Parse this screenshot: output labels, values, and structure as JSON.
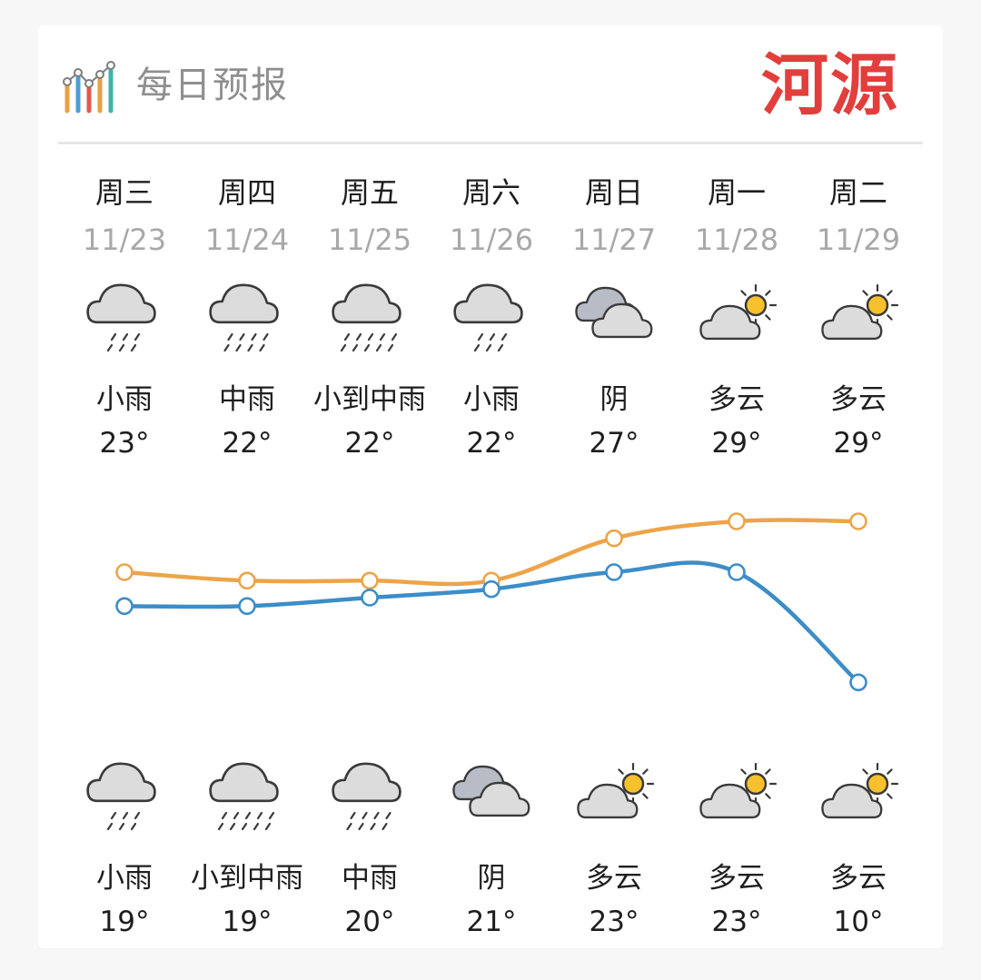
{
  "header": {
    "title": "每日预报",
    "city": "河源",
    "icon": "bar-chart-icon"
  },
  "colors": {
    "high_line": "#eda449",
    "low_line": "#3c8dc8",
    "city": "#e23e3c",
    "date": "#a8a8a8",
    "title": "#8f8f8f"
  },
  "days": [
    {
      "weekday": "周三",
      "date": "11/23",
      "day": {
        "icon": "light-rain-icon",
        "cond": "小雨",
        "temp": "23°"
      },
      "night": {
        "icon": "light-rain-icon",
        "cond": "小雨",
        "temp": "19°"
      }
    },
    {
      "weekday": "周四",
      "date": "11/24",
      "day": {
        "icon": "moderate-rain-icon",
        "cond": "中雨",
        "temp": "22°"
      },
      "night": {
        "icon": "light-to-moderate-rain-icon",
        "cond": "小到中雨",
        "temp": "19°"
      }
    },
    {
      "weekday": "周五",
      "date": "11/25",
      "day": {
        "icon": "light-to-moderate-rain-icon",
        "cond": "小到中雨",
        "temp": "22°"
      },
      "night": {
        "icon": "moderate-rain-icon",
        "cond": "中雨",
        "temp": "20°"
      }
    },
    {
      "weekday": "周六",
      "date": "11/26",
      "day": {
        "icon": "light-rain-icon",
        "cond": "小雨",
        "temp": "22°"
      },
      "night": {
        "icon": "overcast-icon",
        "cond": "阴",
        "temp": "21°"
      }
    },
    {
      "weekday": "周日",
      "date": "11/27",
      "day": {
        "icon": "overcast-icon",
        "cond": "阴",
        "temp": "27°"
      },
      "night": {
        "icon": "partly-cloudy-icon",
        "cond": "多云",
        "temp": "23°"
      }
    },
    {
      "weekday": "周一",
      "date": "11/28",
      "day": {
        "icon": "partly-cloudy-icon",
        "cond": "多云",
        "temp": "29°"
      },
      "night": {
        "icon": "partly-cloudy-icon",
        "cond": "多云",
        "temp": "23°"
      }
    },
    {
      "weekday": "周二",
      "date": "11/29",
      "day": {
        "icon": "partly-cloudy-icon",
        "cond": "多云",
        "temp": "29°"
      },
      "night": {
        "icon": "partly-cloudy-icon",
        "cond": "多云",
        "temp": "10°"
      }
    }
  ],
  "chart_data": {
    "type": "line",
    "categories": [
      "11/23",
      "11/24",
      "11/25",
      "11/26",
      "11/27",
      "11/28",
      "11/29"
    ],
    "series": [
      {
        "values": [
          23,
          22,
          22,
          22,
          27,
          29,
          29
        ]
      },
      {
        "values": [
          19,
          19,
          20,
          21,
          23,
          23,
          10
        ]
      }
    ],
    "ylim": [
      5,
      35
    ],
    "grid": false
  }
}
